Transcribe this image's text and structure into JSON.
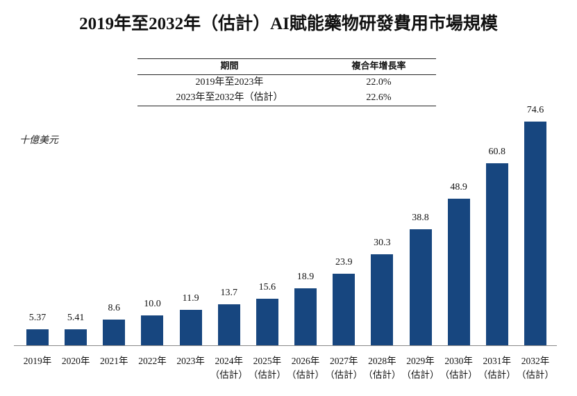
{
  "chart_data": {
    "type": "bar",
    "title": "2019年至2032年（估計）AI賦能藥物研發費用市場規模",
    "y_label": "十億美元",
    "cagr_table": {
      "columns": [
        "期間",
        "複合年增長率"
      ],
      "rows": [
        [
          "2019年至2023年",
          "22.0%"
        ],
        [
          "2023年至2032年（估計）",
          "22.6%"
        ]
      ]
    },
    "categories": [
      "2019年",
      "2020年",
      "2021年",
      "2022年",
      "2023年",
      "2024年\n（估計）",
      "2025年\n（估計）",
      "2026年\n（估計）",
      "2027年\n（估計）",
      "2028年\n（估計）",
      "2029年\n（估計）",
      "2030年\n（估計）",
      "2031年\n（估計）",
      "2032年\n（估計）"
    ],
    "values": [
      5.37,
      5.41,
      8.6,
      10.0,
      11.9,
      13.7,
      15.6,
      18.9,
      23.9,
      30.3,
      38.8,
      48.9,
      60.8,
      74.6
    ],
    "value_labels": [
      "5.37",
      "5.41",
      "8.6",
      "10.0",
      "11.9",
      "13.7",
      "15.6",
      "18.9",
      "23.9",
      "30.3",
      "38.8",
      "48.9",
      "60.8",
      "74.6"
    ],
    "color": "#17467f"
  }
}
